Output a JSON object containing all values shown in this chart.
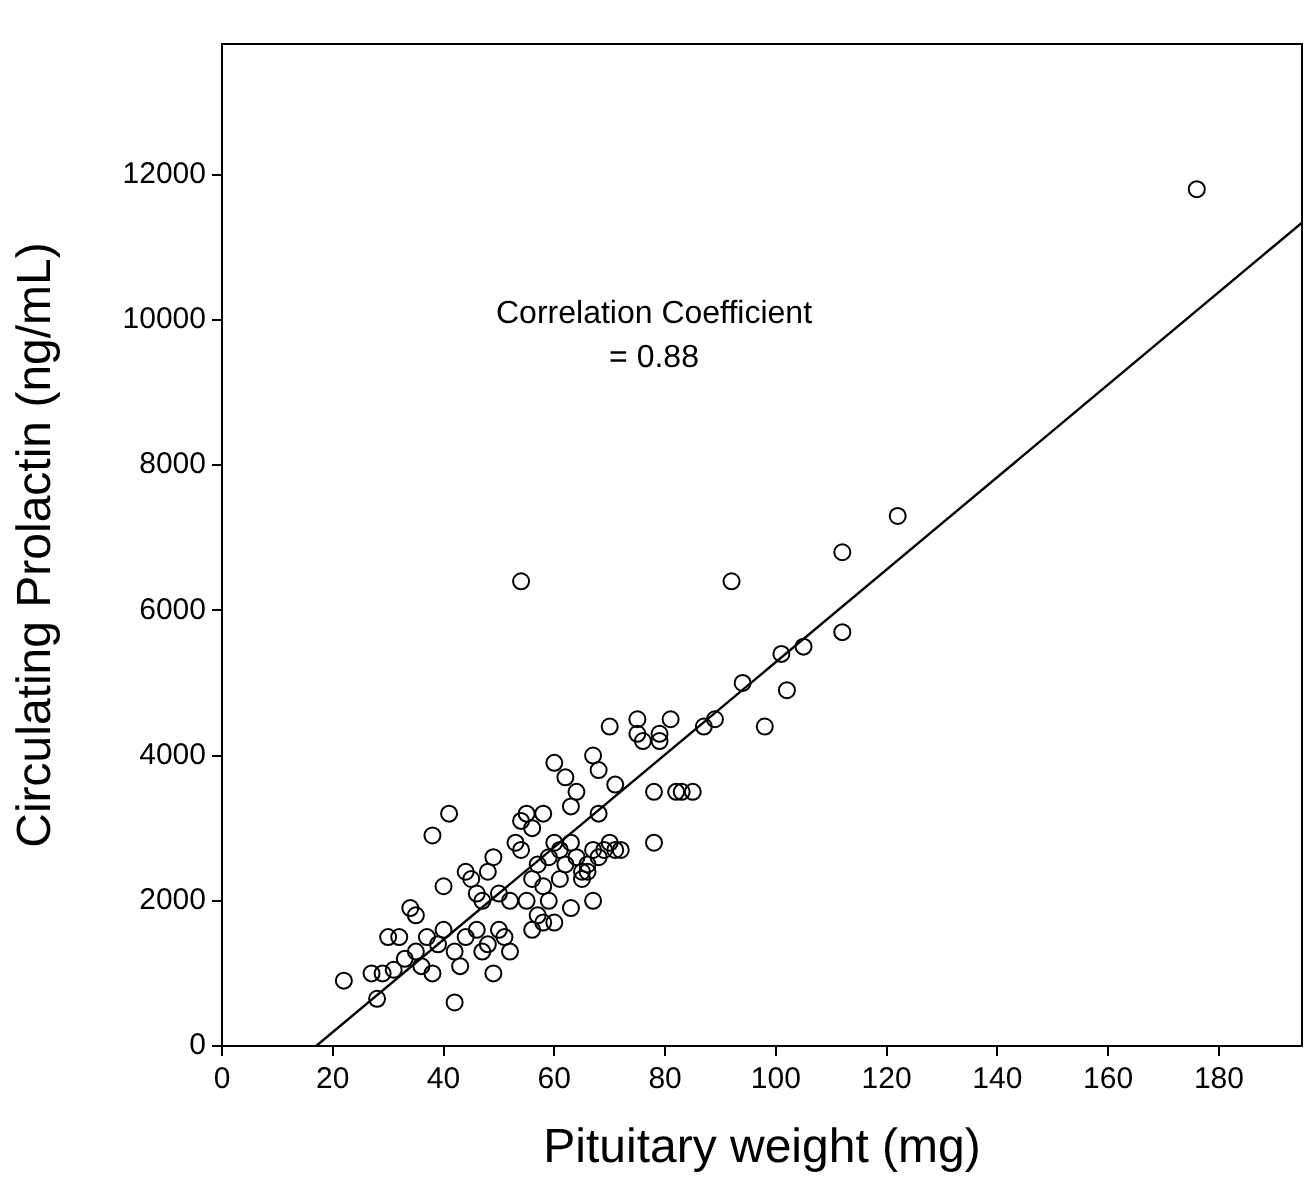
{
  "chart_data": {
    "type": "scatter",
    "xlabel": "Pituitary weight (mg)",
    "ylabel": "Circulating Prolactin (ng/mL)",
    "annotations": [
      "Correlation Coefficient\n= 0.88"
    ],
    "xlim": [
      0,
      195
    ],
    "xticks": [
      0,
      20,
      40,
      60,
      80,
      100,
      120,
      140,
      160,
      180
    ],
    "ylim": [
      0,
      13800
    ],
    "yticks": [
      0,
      2000,
      4000,
      6000,
      8000,
      10000,
      12000
    ],
    "grid": false,
    "legend": false,
    "marker": "circle",
    "series": [
      {
        "color": "#000000",
        "x": [
          22,
          27,
          29,
          28,
          30,
          32,
          31,
          33,
          34,
          35,
          35,
          36,
          37,
          38,
          38,
          39,
          40,
          40,
          41,
          42,
          42,
          43,
          44,
          44,
          45,
          46,
          46,
          47,
          47,
          48,
          48,
          49,
          49,
          50,
          50,
          51,
          52,
          52,
          53,
          54,
          54,
          55,
          55,
          56,
          56,
          56,
          57,
          57,
          58,
          58,
          58,
          59,
          59,
          60,
          60,
          60,
          61,
          61,
          62,
          62,
          63,
          63,
          63,
          64,
          64,
          65,
          65,
          66,
          66,
          67,
          67,
          67,
          68,
          68,
          68,
          69,
          70,
          70,
          71,
          71,
          72,
          75,
          75,
          76,
          78,
          78,
          79,
          79,
          81,
          82,
          83,
          85,
          87,
          89,
          92,
          94,
          98,
          101,
          102,
          105,
          112,
          112,
          122,
          176,
          54
        ],
        "values": [
          900,
          1000,
          1000,
          650,
          1500,
          1500,
          1050,
          1200,
          1900,
          1800,
          1300,
          1100,
          1500,
          1000,
          2900,
          1400,
          1600,
          2200,
          3200,
          1300,
          600,
          1100,
          1500,
          2400,
          2300,
          1600,
          2100,
          2000,
          1300,
          1400,
          2400,
          1000,
          2600,
          1600,
          2100,
          1500,
          2000,
          1300,
          2800,
          2700,
          3100,
          3200,
          2000,
          1600,
          2300,
          3000,
          1800,
          2500,
          2200,
          1700,
          3200,
          2600,
          2000,
          1700,
          2800,
          3900,
          2300,
          2700,
          2500,
          3700,
          1900,
          2800,
          3300,
          2600,
          3500,
          2400,
          2300,
          2500,
          2400,
          2700,
          4000,
          2000,
          2600,
          3800,
          3200,
          2700,
          4400,
          2800,
          3600,
          2700,
          2700,
          4500,
          4300,
          4200,
          2800,
          3500,
          4200,
          4300,
          4500,
          3500,
          3500,
          3500,
          4400,
          4500,
          6400,
          5000,
          4400,
          5400,
          4900,
          5500,
          5700,
          6800,
          7300,
          11800,
          6400
        ]
      },
      {
        "type": "line",
        "color": "#000000",
        "marker": "none",
        "x": [
          17,
          195
        ],
        "values": [
          0,
          11340
        ]
      }
    ]
  }
}
